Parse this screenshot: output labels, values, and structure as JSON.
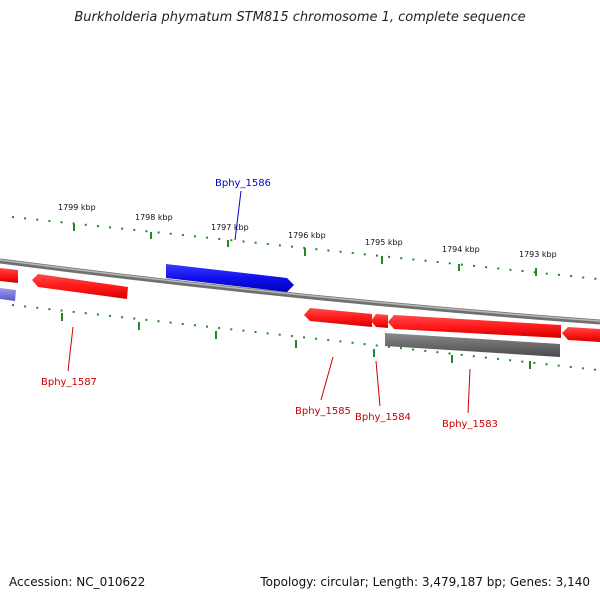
{
  "title": "Burkholderia phymatum STM815 chromosome 1, complete sequence",
  "footer": {
    "accession": "Accession: NC_010622",
    "summary": "Topology: circular; Length: 3,479,187 bp; Genes: 3,140"
  },
  "colors": {
    "forward_gene": "#ff1a1a",
    "reverse_gene": "#1010ee",
    "pseudo_gene": "#6a6a6a",
    "tick": "#228822",
    "backbone": "#888888",
    "label_blue": "#0000cc",
    "label_red": "#cc0000"
  },
  "kbp_labels": [
    "1799 kbp",
    "1798 kbp",
    "1797 kbp",
    "1796 kbp",
    "1795 kbp",
    "1794 kbp",
    "1793 kbp"
  ],
  "gene_labels": [
    {
      "text": "Bphy_1586",
      "color": "label_blue"
    },
    {
      "text": "Bphy_1587",
      "color": "label_red"
    },
    {
      "text": "Bphy_1585",
      "color": "label_red"
    },
    {
      "text": "Bphy_1584",
      "color": "label_red"
    },
    {
      "text": "Bphy_1583",
      "color": "label_red"
    }
  ]
}
